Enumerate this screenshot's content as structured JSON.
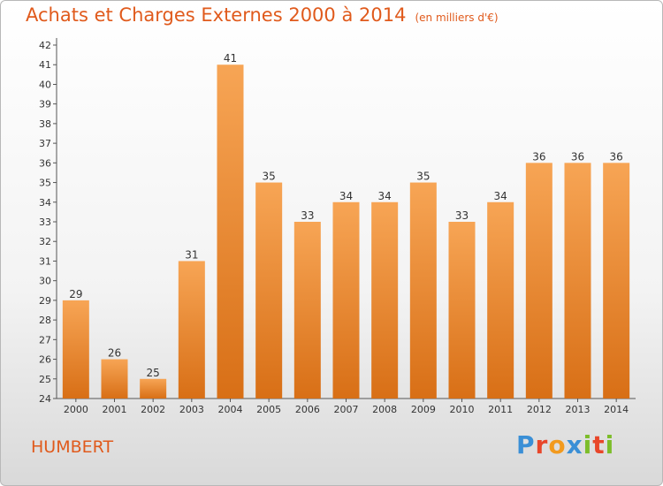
{
  "title": "Achats et Charges Externes 2000 à 2014",
  "unit": "(en milliers d'€)",
  "commune": "HUMBERT",
  "logo": [
    "P",
    "r",
    "o",
    "x",
    "i",
    "t",
    "i"
  ],
  "logo_colors": [
    "#3a8fd6",
    "#e8462a",
    "#f29a1e",
    "#3a8fd6",
    "#7cbd2a",
    "#e8462a",
    "#7cbd2a"
  ],
  "chart_data": {
    "type": "bar",
    "title": "Achats et Charges Externes 2000 à 2014",
    "subtitle": "(en milliers d'€)",
    "categories": [
      "2000",
      "2001",
      "2002",
      "2003",
      "2004",
      "2005",
      "2006",
      "2007",
      "2008",
      "2009",
      "2010",
      "2011",
      "2012",
      "2013",
      "2014"
    ],
    "values": [
      29,
      26,
      25,
      31,
      41,
      35,
      33,
      34,
      34,
      35,
      33,
      34,
      36,
      36,
      36
    ],
    "ylim": [
      24,
      42
    ],
    "yticks": [
      24,
      25,
      26,
      27,
      28,
      29,
      30,
      31,
      32,
      33,
      34,
      35,
      36,
      37,
      38,
      39,
      40,
      41,
      42
    ],
    "grid": false,
    "bar_color": "#f0882e"
  }
}
